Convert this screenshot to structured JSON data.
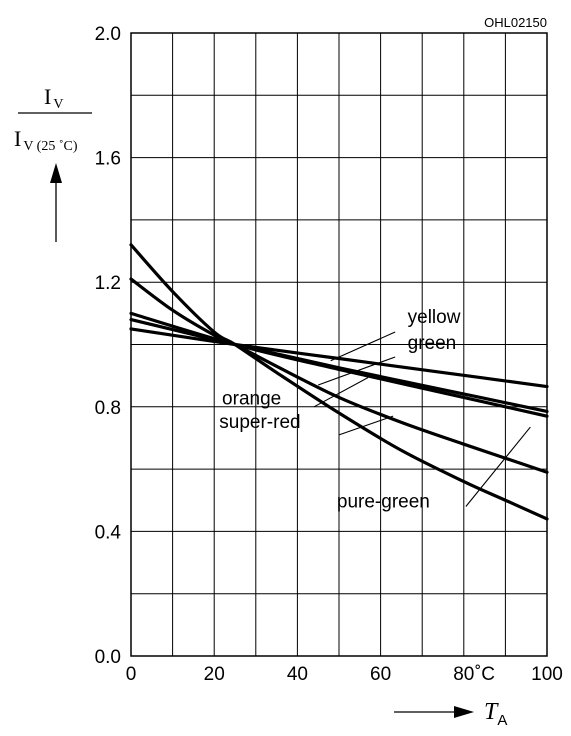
{
  "chart_data": {
    "type": "line",
    "figure_code": "OHL02150",
    "ylabel": {
      "numerator": "I",
      "numerator_sub": "V",
      "denominator": "I",
      "denominator_sub": "V (25 ˚C)"
    },
    "xlabel": {
      "symbol": "T",
      "subscript": "A"
    },
    "x_unit": "˚C",
    "xlim": [
      0,
      100
    ],
    "ylim": [
      0.0,
      2.0
    ],
    "x_ticks": [
      "0",
      "20",
      "40",
      "60",
      "80",
      "100"
    ],
    "y_ticks": [
      "0.0",
      "0.4",
      "0.8",
      "1.2",
      "1.6",
      "2.0"
    ],
    "grid": true,
    "series": [
      {
        "name": "yellow",
        "x": [
          0,
          25,
          50,
          75,
          100
        ],
        "y": [
          1.05,
          1.0,
          0.955,
          0.91,
          0.865
        ]
      },
      {
        "name": "green",
        "x": [
          0,
          25,
          50,
          75,
          100
        ],
        "y": [
          1.08,
          1.0,
          0.925,
          0.855,
          0.785
        ]
      },
      {
        "name": "orange",
        "x": [
          0,
          25,
          50,
          75,
          100
        ],
        "y": [
          1.1,
          1.0,
          0.92,
          0.845,
          0.77
        ]
      },
      {
        "name": "super-red",
        "x": [
          0,
          10,
          20,
          25,
          35,
          50,
          65,
          80,
          100
        ],
        "y": [
          1.21,
          1.11,
          1.03,
          1.0,
          0.93,
          0.83,
          0.75,
          0.68,
          0.59
        ]
      },
      {
        "name": "pure-green",
        "x": [
          0,
          10,
          20,
          25,
          35,
          50,
          65,
          80,
          90,
          100
        ],
        "y": [
          1.32,
          1.17,
          1.04,
          1.0,
          0.91,
          0.78,
          0.66,
          0.56,
          0.5,
          0.44
        ]
      }
    ],
    "annotations": [
      {
        "text": "yellow"
      },
      {
        "text": "green"
      },
      {
        "text": "orange"
      },
      {
        "text": "super-red"
      },
      {
        "text": "pure-green"
      }
    ]
  }
}
